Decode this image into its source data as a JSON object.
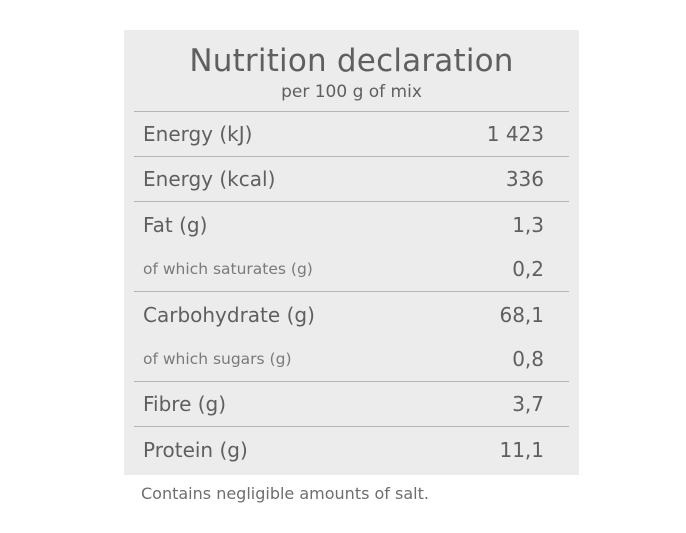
{
  "header": {
    "title": "Nutrition declaration",
    "subtitle": "per 100 g of mix"
  },
  "rows": [
    {
      "label": "Energy (kJ)",
      "value": "1 423"
    },
    {
      "label": "Energy (kcal)",
      "value": "336"
    },
    {
      "label": "Fat (g)",
      "value": "1,3"
    },
    {
      "label": "of which saturates (g)",
      "value": "0,2"
    },
    {
      "label": "Carbohydrate (g)",
      "value": "68,1"
    },
    {
      "label": "of which sugars (g)",
      "value": "0,8"
    },
    {
      "label": "Fibre (g)",
      "value": "3,7"
    },
    {
      "label": "Protein (g)",
      "value": "11,1"
    }
  ],
  "footnote": "Contains negligible amounts of salt."
}
